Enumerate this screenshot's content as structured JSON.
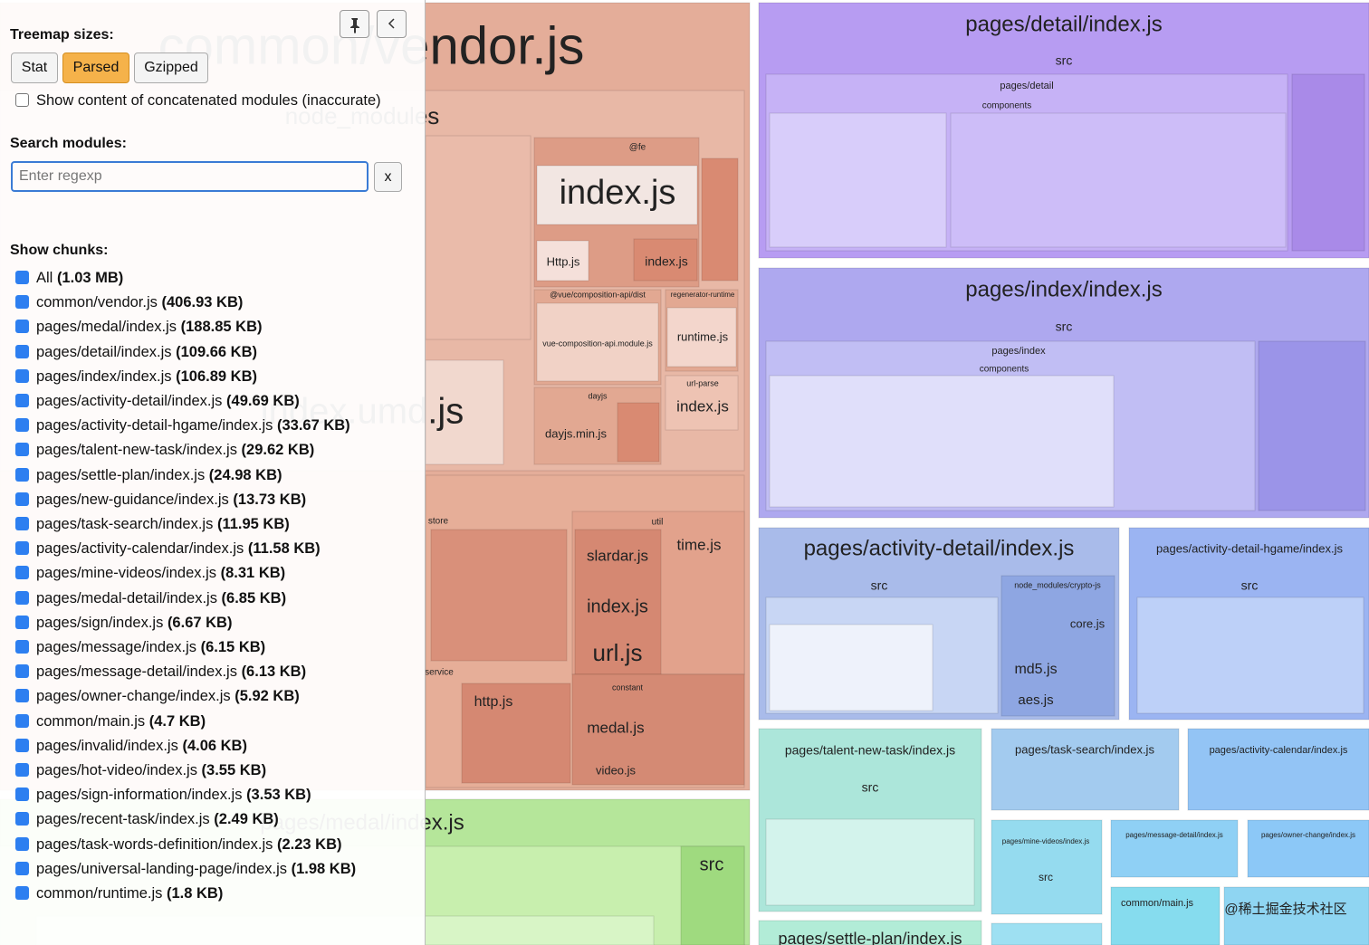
{
  "sidebar": {
    "treemap_sizes_label": "Treemap sizes:",
    "size_buttons": [
      {
        "label": "Stat",
        "active": false
      },
      {
        "label": "Parsed",
        "active": true
      },
      {
        "label": "Gzipped",
        "active": false
      }
    ],
    "concatenated_label": "Show content of concatenated modules (inaccurate)",
    "search_label": "Search modules:",
    "search_placeholder": "Enter regexp",
    "clear_button": "x",
    "chunks_label": "Show chunks:",
    "chunks": [
      {
        "name": "All",
        "size": "(1.03 MB)"
      },
      {
        "name": "common/vendor.js",
        "size": "(406.93 KB)"
      },
      {
        "name": "pages/medal/index.js",
        "size": "(188.85 KB)"
      },
      {
        "name": "pages/detail/index.js",
        "size": "(109.66 KB)"
      },
      {
        "name": "pages/index/index.js",
        "size": "(106.89 KB)"
      },
      {
        "name": "pages/activity-detail/index.js",
        "size": "(49.69 KB)"
      },
      {
        "name": "pages/activity-detail-hgame/index.js",
        "size": "(33.67 KB)"
      },
      {
        "name": "pages/talent-new-task/index.js",
        "size": "(29.62 KB)"
      },
      {
        "name": "pages/settle-plan/index.js",
        "size": "(24.98 KB)"
      },
      {
        "name": "pages/new-guidance/index.js",
        "size": "(13.73 KB)"
      },
      {
        "name": "pages/task-search/index.js",
        "size": "(11.95 KB)"
      },
      {
        "name": "pages/activity-calendar/index.js",
        "size": "(11.58 KB)"
      },
      {
        "name": "pages/mine-videos/index.js",
        "size": "(8.31 KB)"
      },
      {
        "name": "pages/medal-detail/index.js",
        "size": "(6.85 KB)"
      },
      {
        "name": "pages/sign/index.js",
        "size": "(6.67 KB)"
      },
      {
        "name": "pages/message/index.js",
        "size": "(6.15 KB)"
      },
      {
        "name": "pages/message-detail/index.js",
        "size": "(6.13 KB)"
      },
      {
        "name": "pages/owner-change/index.js",
        "size": "(5.92 KB)"
      },
      {
        "name": "common/main.js",
        "size": "(4.7 KB)"
      },
      {
        "name": "pages/invalid/index.js",
        "size": "(4.06 KB)"
      },
      {
        "name": "pages/hot-video/index.js",
        "size": "(3.55 KB)"
      },
      {
        "name": "pages/sign-information/index.js",
        "size": "(3.53 KB)"
      },
      {
        "name": "pages/recent-task/index.js",
        "size": "(2.49 KB)"
      },
      {
        "name": "pages/task-words-definition/index.js",
        "size": "(2.23 KB)"
      },
      {
        "name": "pages/universal-landing-page/index.js",
        "size": "(1.98 KB)"
      },
      {
        "name": "common/runtime.js",
        "size": "(1.8 KB)"
      }
    ]
  },
  "treemap": {
    "nodes": [
      {
        "label": "common/vendor.js"
      },
      {
        "label": "node_modules"
      },
      {
        "label": "@fe"
      },
      {
        "label": "index.js"
      },
      {
        "label": "Http.js"
      },
      {
        "label": "index.js"
      },
      {
        "label": "@vue/composition-api/dist"
      },
      {
        "label": "vue-composition-api.module.js"
      },
      {
        "label": "regenerator-runtime"
      },
      {
        "label": "runtime.js"
      },
      {
        "label": "url-parse"
      },
      {
        "label": "index.js"
      },
      {
        "label": "dayjs"
      },
      {
        "label": "dayjs.min.js"
      },
      {
        "label": "index.umd.js"
      },
      {
        "label": "store"
      },
      {
        "label": "util"
      },
      {
        "label": "slardar.js"
      },
      {
        "label": "time.js"
      },
      {
        "label": "index.js"
      },
      {
        "label": "url.js"
      },
      {
        "label": "service"
      },
      {
        "label": "http.js"
      },
      {
        "label": "constant"
      },
      {
        "label": "medal.js"
      },
      {
        "label": "video.js"
      },
      {
        "label": "pages/medal/index.js"
      },
      {
        "label": "src"
      },
      {
        "label": "pages/detail/index.js"
      },
      {
        "label": "src"
      },
      {
        "label": "pages/detail"
      },
      {
        "label": "components"
      },
      {
        "label": "pages/index/index.js"
      },
      {
        "label": "src"
      },
      {
        "label": "pages/index"
      },
      {
        "label": "components"
      },
      {
        "label": "pages/activity-detail/index.js"
      },
      {
        "label": "src"
      },
      {
        "label": "node_modules/crypto-js"
      },
      {
        "label": "core.js"
      },
      {
        "label": "md5.js"
      },
      {
        "label": "aes.js"
      },
      {
        "label": "pages/activity-detail-hgame/index.js"
      },
      {
        "label": "src"
      },
      {
        "label": "pages/talent-new-task/index.js"
      },
      {
        "label": "src"
      },
      {
        "label": "pages/task-search/index.js"
      },
      {
        "label": "pages/activity-calendar/index.js"
      },
      {
        "label": "pages/settle-plan/index.js"
      },
      {
        "label": "pages/mine-videos/index.js"
      },
      {
        "label": "src"
      },
      {
        "label": "pages/message-detail/index.js"
      },
      {
        "label": "pages/owner-change/index.js"
      },
      {
        "label": "common/main.js"
      },
      {
        "label": "@稀土掘金技术社区"
      }
    ]
  }
}
